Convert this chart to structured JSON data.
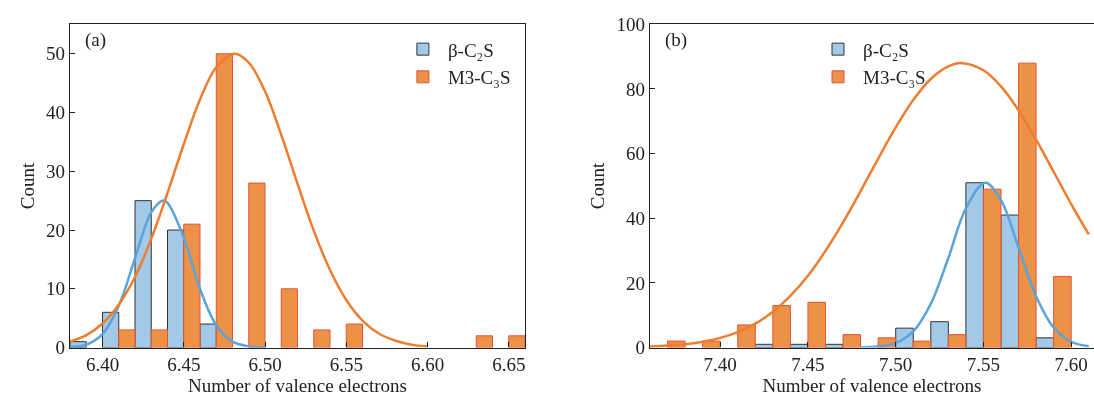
{
  "chart_data": [
    {
      "type": "bar",
      "xlabel": "Number of valence electrons",
      "ylabel": "Count",
      "annotations": [
        "(a)"
      ],
      "legend": "top right",
      "xlim": [
        6.38,
        6.66
      ],
      "ylim": [
        0,
        55
      ],
      "xticks": [
        {
          "value": 6.4,
          "label": "6.40"
        },
        {
          "value": 6.45,
          "label": "6.45"
        },
        {
          "value": 6.5,
          "label": "6.50"
        },
        {
          "value": 6.55,
          "label": "6.55"
        },
        {
          "value": 6.6,
          "label": "6.60"
        },
        {
          "value": 6.65,
          "label": "6.65"
        }
      ],
      "yticks": [
        0,
        10,
        20,
        30,
        40,
        50
      ],
      "series": [
        {
          "name": "β-C₂S",
          "color": "#a3c9e8",
          "x": [
            6.385,
            6.405,
            6.425,
            6.445,
            6.465
          ],
          "values": [
            1,
            6,
            25,
            20,
            4
          ]
        },
        {
          "name": "M3-C₃S",
          "color": "#ec9146",
          "x": [
            6.415,
            6.435,
            6.455,
            6.475,
            6.495,
            6.515,
            6.535,
            6.555,
            6.635,
            6.655
          ],
          "values": [
            3,
            3,
            21,
            50,
            28,
            10,
            3,
            4,
            2,
            2
          ]
        },
        {
          "type": "line",
          "color": "#5ba3d9",
          "x": [
            6.38,
            6.39,
            6.4,
            6.41,
            6.42,
            6.43,
            6.437,
            6.44,
            6.45,
            6.46,
            6.47,
            6.48,
            6.49,
            6.5
          ],
          "values": [
            0.1,
            0.5,
            2.3,
            7.1,
            15.2,
            23.0,
            25.0,
            24.6,
            18.7,
            10.0,
            3.8,
            1.0,
            0.2,
            0.0
          ]
        },
        {
          "type": "line",
          "color": "#ee7d2f",
          "x": [
            6.38,
            6.39,
            6.4,
            6.41,
            6.42,
            6.43,
            6.44,
            6.45,
            6.46,
            6.47,
            6.481,
            6.49,
            6.5,
            6.51,
            6.52,
            6.53,
            6.54,
            6.55,
            6.56,
            6.57,
            6.58,
            6.59,
            6.6
          ],
          "values": [
            1.0,
            2.1,
            4.1,
            7.3,
            12.0,
            18.5,
            26.3,
            34.6,
            42.2,
            47.7,
            50.0,
            48.5,
            43.6,
            36.2,
            27.9,
            19.9,
            13.2,
            8.1,
            4.6,
            2.4,
            1.2,
            0.5,
            0.2
          ]
        }
      ]
    },
    {
      "type": "bar",
      "xlabel": "Number of valence electrons",
      "ylabel": "Count",
      "annotations": [
        "(b)"
      ],
      "legend": "top",
      "xlim": [
        7.36,
        7.613
      ],
      "ylim": [
        0,
        100
      ],
      "xticks": [
        {
          "value": 7.4,
          "label": "7.40"
        },
        {
          "value": 7.45,
          "label": "7.45"
        },
        {
          "value": 7.5,
          "label": "7.50"
        },
        {
          "value": 7.55,
          "label": "7.55"
        },
        {
          "value": 7.6,
          "label": "7.60"
        }
      ],
      "yticks": [
        0,
        20,
        40,
        60,
        80,
        100
      ],
      "series": [
        {
          "name": "β-C₂S",
          "color": "#a3c9e8",
          "x": [
            7.425,
            7.445,
            7.465,
            7.505,
            7.525,
            7.545,
            7.565,
            7.585
          ],
          "values": [
            1,
            1,
            1,
            6,
            8,
            51,
            41,
            3
          ]
        },
        {
          "name": "M3-C₃S",
          "color": "#ec9146",
          "x": [
            7.375,
            7.395,
            7.415,
            7.435,
            7.455,
            7.475,
            7.495,
            7.515,
            7.535,
            7.555,
            7.575,
            7.595
          ],
          "values": [
            2,
            2,
            7,
            13,
            14,
            4,
            3,
            2,
            4,
            49,
            88,
            22
          ]
        },
        {
          "type": "line",
          "color": "#5ba3d9",
          "x": [
            7.48,
            7.49,
            7.5,
            7.51,
            7.52,
            7.53,
            7.54,
            7.551,
            7.56,
            7.57,
            7.58,
            7.59,
            7.6,
            7.61
          ],
          "values": [
            0.0,
            0.3,
            1.4,
            5.0,
            13.5,
            27.7,
            43.1,
            51.0,
            45.6,
            30.9,
            15.9,
            6.2,
            1.8,
            0.4
          ]
        },
        {
          "type": "line",
          "color": "#ee7d2f",
          "x": [
            7.36,
            7.37,
            7.38,
            7.39,
            7.4,
            7.41,
            7.42,
            7.43,
            7.44,
            7.45,
            7.46,
            7.47,
            7.48,
            7.49,
            7.5,
            7.51,
            7.52,
            7.53,
            7.538,
            7.55,
            7.56,
            7.57,
            7.58,
            7.59,
            7.6,
            7.61
          ],
          "values": [
            0.3,
            0.6,
            1.0,
            1.8,
            3.0,
            4.8,
            7.4,
            11.1,
            16.0,
            22.2,
            29.9,
            38.7,
            48.4,
            58.4,
            68.1,
            76.6,
            83.1,
            87.0,
            88.0,
            85.8,
            80.8,
            73.4,
            64.3,
            54.4,
            44.4,
            35.0
          ]
        }
      ]
    }
  ]
}
